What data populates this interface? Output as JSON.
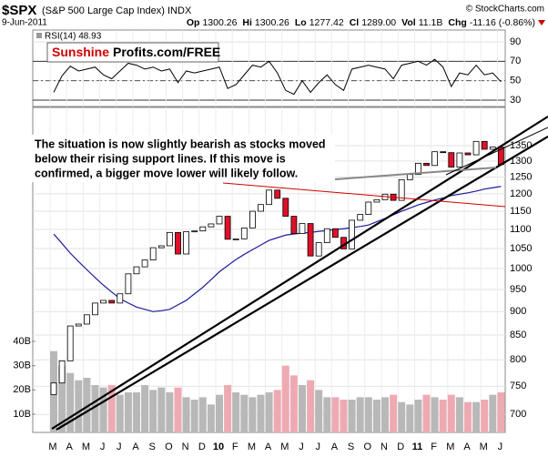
{
  "header": {
    "symbol": "$SPX",
    "name": "(S&P 500 Large Cap Index) INDX",
    "date": "9-Jun-2011",
    "credit": "© StockCharts.com",
    "quote": [
      {
        "label": "Op",
        "value": "1300.26"
      },
      {
        "label": "Hi",
        "value": "1300.26"
      },
      {
        "label": "Lo",
        "value": "1277.42"
      },
      {
        "label": "Cl",
        "value": "1289.00"
      },
      {
        "label": "Vol",
        "value": "11.1B"
      },
      {
        "label": "Chg",
        "value": "-11.16 (-0.86%)"
      }
    ]
  },
  "chart_data": [
    {
      "type": "line",
      "label": "RSI(14) 48.93",
      "color": "#000000",
      "fill_above_color": "#5f8f5f",
      "watermark": {
        "red": "Sunshine",
        "black": "Profits.com/FREE"
      },
      "values": [
        38,
        55,
        65,
        60,
        62,
        64,
        56,
        52,
        60,
        68,
        66,
        62,
        64,
        60,
        62,
        48,
        60,
        58,
        60,
        62,
        64,
        42,
        46,
        56,
        66,
        64,
        70,
        58,
        40,
        36,
        50,
        38,
        48,
        56,
        46,
        40,
        62,
        64,
        66,
        64,
        62,
        52,
        66,
        68,
        70,
        66,
        72,
        64,
        44,
        58,
        56,
        66,
        56,
        58,
        48.93
      ],
      "ylim": [
        23.4,
        102.2
      ],
      "yticks": [
        90,
        70,
        50,
        30
      ],
      "signal_lines": [
        70,
        30
      ],
      "center_line": 50,
      "grid": true
    },
    {
      "type": "candlestick",
      "log": true,
      "grid": true,
      "up_color": "#ffffff",
      "down_color": "#e0102a",
      "categories": [
        "M",
        null,
        "A",
        null,
        "M",
        null,
        "J",
        null,
        "J",
        null,
        "A",
        null,
        "S",
        null,
        "O",
        null,
        "N",
        null,
        "D",
        null,
        "10",
        null,
        "F",
        null,
        "M",
        null,
        "A",
        null,
        "M",
        null,
        "J",
        null,
        "J",
        null,
        "A",
        null,
        "S",
        null,
        "O",
        null,
        "N",
        null,
        "D",
        null,
        "11",
        null,
        "F",
        null,
        "M",
        null,
        "A",
        null,
        "M",
        null,
        "J"
      ],
      "open": [
        735,
        756,
        798,
        869,
        873,
        893,
        919,
        925,
        919,
        940,
        987,
        1004,
        1021,
        1052,
        1057,
        1092,
        1036,
        1094,
        1096,
        1107,
        1115,
        1136,
        1074,
        1075,
        1104,
        1150,
        1169,
        1211,
        1187,
        1136,
        1089,
        1116,
        1031,
        1065,
        1102,
        1079,
        1049,
        1125,
        1141,
        1176,
        1183,
        1199,
        1181,
        1242,
        1258,
        1293,
        1286,
        1330,
        1327,
        1281,
        1326,
        1320,
        1364,
        1338,
        1345
      ],
      "close": [
        756,
        798,
        869,
        873,
        893,
        919,
        925,
        919,
        940,
        987,
        1004,
        1021,
        1052,
        1057,
        1092,
        1036,
        1094,
        1096,
        1107,
        1115,
        1136,
        1074,
        1075,
        1104,
        1150,
        1169,
        1211,
        1187,
        1136,
        1089,
        1116,
        1031,
        1065,
        1102,
        1079,
        1049,
        1125,
        1141,
        1176,
        1183,
        1199,
        1181,
        1242,
        1258,
        1293,
        1286,
        1330,
        1327,
        1281,
        1326,
        1320,
        1364,
        1338,
        1345,
        1289
      ],
      "moving_average": {
        "color": "#1c1c9c",
        "values": [
          1088,
          1063,
          1038,
          1017,
          997,
          978,
          960,
          944,
          929,
          919,
          910,
          905,
          900,
          902,
          905,
          915,
          925,
          940,
          955,
          973,
          992,
          1007,
          1022,
          1035,
          1047,
          1059,
          1071,
          1078,
          1085,
          1088,
          1090,
          1092,
          1095,
          1097,
          1100,
          1102,
          1105,
          1108,
          1112,
          1121,
          1130,
          1140,
          1150,
          1159,
          1168,
          1175,
          1182,
          1188,
          1195,
          1199,
          1203,
          1208,
          1214,
          1218,
          1222
        ]
      },
      "volume": {
        "axis": "y2",
        "up_color": "#b8b8b8",
        "down_color": "#eeaab2",
        "values": [
          36,
          30,
          27,
          24,
          25,
          22,
          21,
          22,
          18,
          19,
          19,
          22,
          20,
          21,
          19,
          21,
          17,
          16,
          17,
          14,
          18,
          22,
          19,
          18,
          17,
          18,
          19,
          20,
          30,
          26,
          22,
          24,
          20,
          17,
          17,
          16,
          16,
          17,
          17,
          16,
          17,
          18,
          15,
          14,
          16,
          18,
          17,
          16,
          18,
          17,
          15,
          15,
          16,
          18,
          19
        ]
      },
      "ylim": [
        670,
        1482
      ],
      "yticks": [
        700,
        750,
        800,
        850,
        900,
        950,
        1000,
        1050,
        1100,
        1150,
        1200,
        1250,
        1300,
        1350
      ],
      "y2lim": [
        2.5,
        136.4
      ],
      "y2ticks": [
        {
          "value": 10,
          "label": "10B"
        },
        {
          "value": 20,
          "label": "20B"
        },
        {
          "value": 30,
          "label": "30B"
        },
        {
          "value": 40,
          "label": "40B"
        }
      ],
      "annotation": [
        "The situation is now slightly bearish as stocks moved",
        "below their rising support lines. If this move is",
        "confirmed, a bigger move lower will likely follow."
      ]
    }
  ]
}
